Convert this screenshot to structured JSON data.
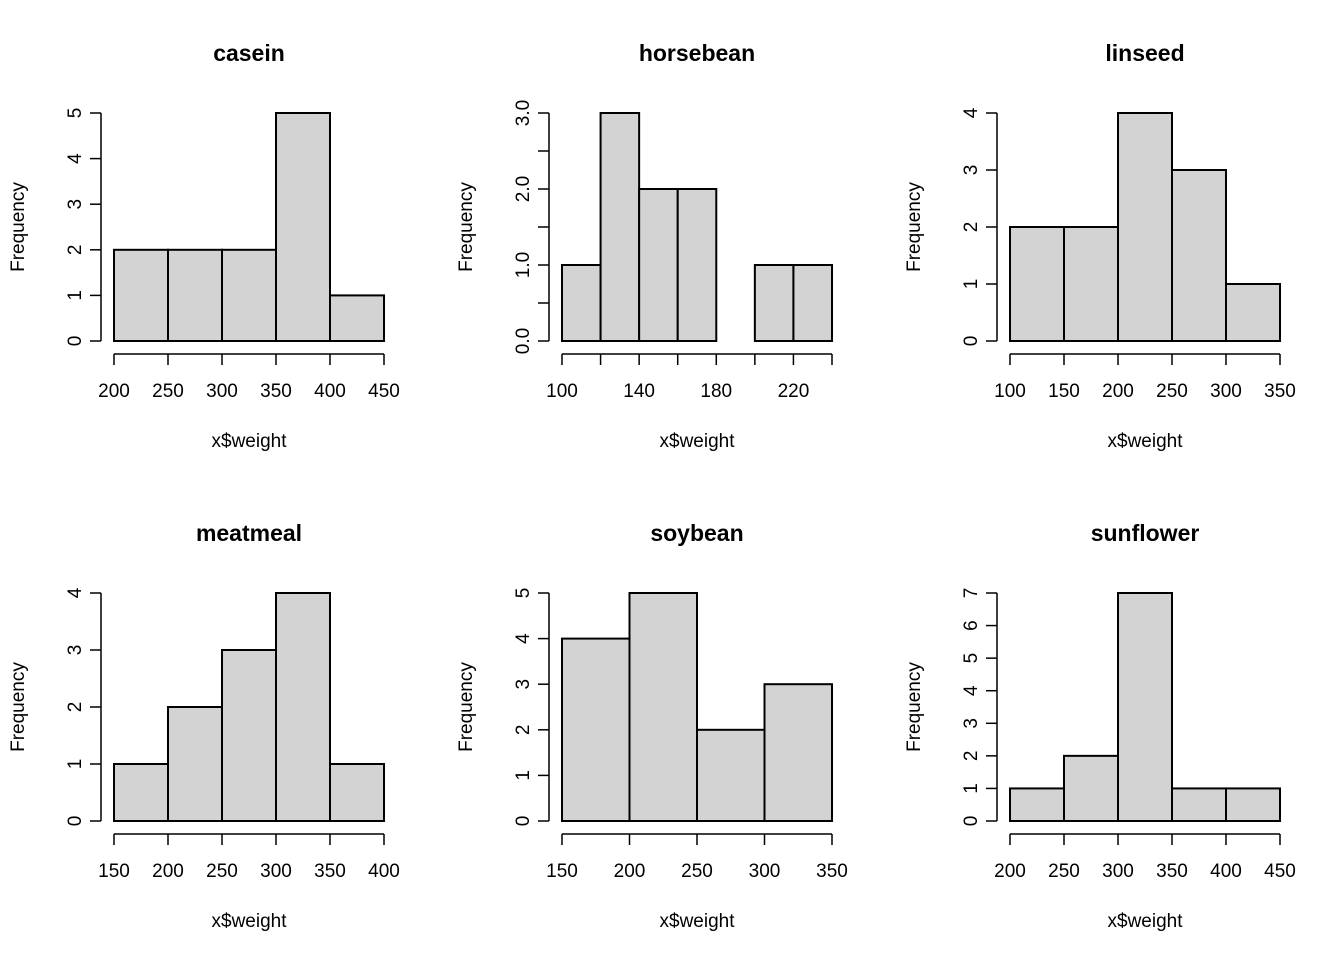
{
  "colors": {
    "bar_fill": "#d3d3d3",
    "bar_stroke": "#000000",
    "background": "#ffffff"
  },
  "chart_data": [
    {
      "type": "bar",
      "title": "casein",
      "xlabel": "x$weight",
      "ylabel": "Frequency",
      "bin_edges": [
        200,
        250,
        300,
        350,
        400,
        450
      ],
      "values": [
        2,
        2,
        2,
        5,
        1
      ],
      "xticks": [
        200,
        250,
        300,
        350,
        400,
        450
      ],
      "xtick_labels": [
        "200",
        "250",
        "300",
        "350",
        "400",
        "450"
      ],
      "yticks": [
        0,
        1,
        2,
        3,
        4,
        5
      ],
      "ytick_labels": [
        "0",
        "1",
        "2",
        "3",
        "4",
        "5"
      ],
      "ylim": [
        0,
        5
      ],
      "grid": false
    },
    {
      "type": "bar",
      "title": "horsebean",
      "xlabel": "x$weight",
      "ylabel": "Frequency",
      "bin_edges": [
        100,
        120,
        140,
        160,
        180,
        200,
        220,
        240
      ],
      "values": [
        1,
        3,
        2,
        2,
        0,
        1,
        1
      ],
      "xticks": [
        100,
        120,
        140,
        160,
        180,
        200,
        220,
        240
      ],
      "xtick_labels": [
        "100",
        "",
        "140",
        "",
        "180",
        "",
        "220",
        ""
      ],
      "yticks": [
        0,
        0.5,
        1,
        1.5,
        2,
        2.5,
        3
      ],
      "ytick_labels": [
        "0.0",
        "",
        "1.0",
        "",
        "2.0",
        "",
        "3.0"
      ],
      "ylim": [
        0,
        3
      ],
      "grid": false
    },
    {
      "type": "bar",
      "title": "linseed",
      "xlabel": "x$weight",
      "ylabel": "Frequency",
      "bin_edges": [
        100,
        150,
        200,
        250,
        300,
        350
      ],
      "values": [
        2,
        2,
        4,
        3,
        1
      ],
      "xticks": [
        100,
        150,
        200,
        250,
        300,
        350
      ],
      "xtick_labels": [
        "100",
        "150",
        "200",
        "250",
        "300",
        "350"
      ],
      "yticks": [
        0,
        1,
        2,
        3,
        4
      ],
      "ytick_labels": [
        "0",
        "1",
        "2",
        "3",
        "4"
      ],
      "ylim": [
        0,
        4
      ],
      "grid": false
    },
    {
      "type": "bar",
      "title": "meatmeal",
      "xlabel": "x$weight",
      "ylabel": "Frequency",
      "bin_edges": [
        150,
        200,
        250,
        300,
        350,
        400
      ],
      "values": [
        1,
        2,
        3,
        4,
        1
      ],
      "xticks": [
        150,
        200,
        250,
        300,
        350,
        400
      ],
      "xtick_labels": [
        "150",
        "200",
        "250",
        "300",
        "350",
        "400"
      ],
      "yticks": [
        0,
        1,
        2,
        3,
        4
      ],
      "ytick_labels": [
        "0",
        "1",
        "2",
        "3",
        "4"
      ],
      "ylim": [
        0,
        4
      ],
      "grid": false
    },
    {
      "type": "bar",
      "title": "soybean",
      "xlabel": "x$weight",
      "ylabel": "Frequency",
      "bin_edges": [
        150,
        200,
        250,
        300,
        350
      ],
      "values": [
        4,
        5,
        2,
        3
      ],
      "xticks": [
        150,
        200,
        250,
        300,
        350
      ],
      "xtick_labels": [
        "150",
        "200",
        "250",
        "300",
        "350"
      ],
      "yticks": [
        0,
        1,
        2,
        3,
        4,
        5
      ],
      "ytick_labels": [
        "0",
        "1",
        "2",
        "3",
        "4",
        "5"
      ],
      "ylim": [
        0,
        5
      ],
      "grid": false
    },
    {
      "type": "bar",
      "title": "sunflower",
      "xlabel": "x$weight",
      "ylabel": "Frequency",
      "bin_edges": [
        200,
        250,
        300,
        350,
        400,
        450
      ],
      "values": [
        1,
        2,
        7,
        1,
        1
      ],
      "xticks": [
        200,
        250,
        300,
        350,
        400,
        450
      ],
      "xtick_labels": [
        "200",
        "250",
        "300",
        "350",
        "400",
        "450"
      ],
      "yticks": [
        0,
        1,
        2,
        3,
        4,
        5,
        6,
        7
      ],
      "ytick_labels": [
        "0",
        "1",
        "2",
        "3",
        "4",
        "5",
        "6",
        "7"
      ],
      "ylim": [
        0,
        7
      ],
      "grid": false
    }
  ]
}
